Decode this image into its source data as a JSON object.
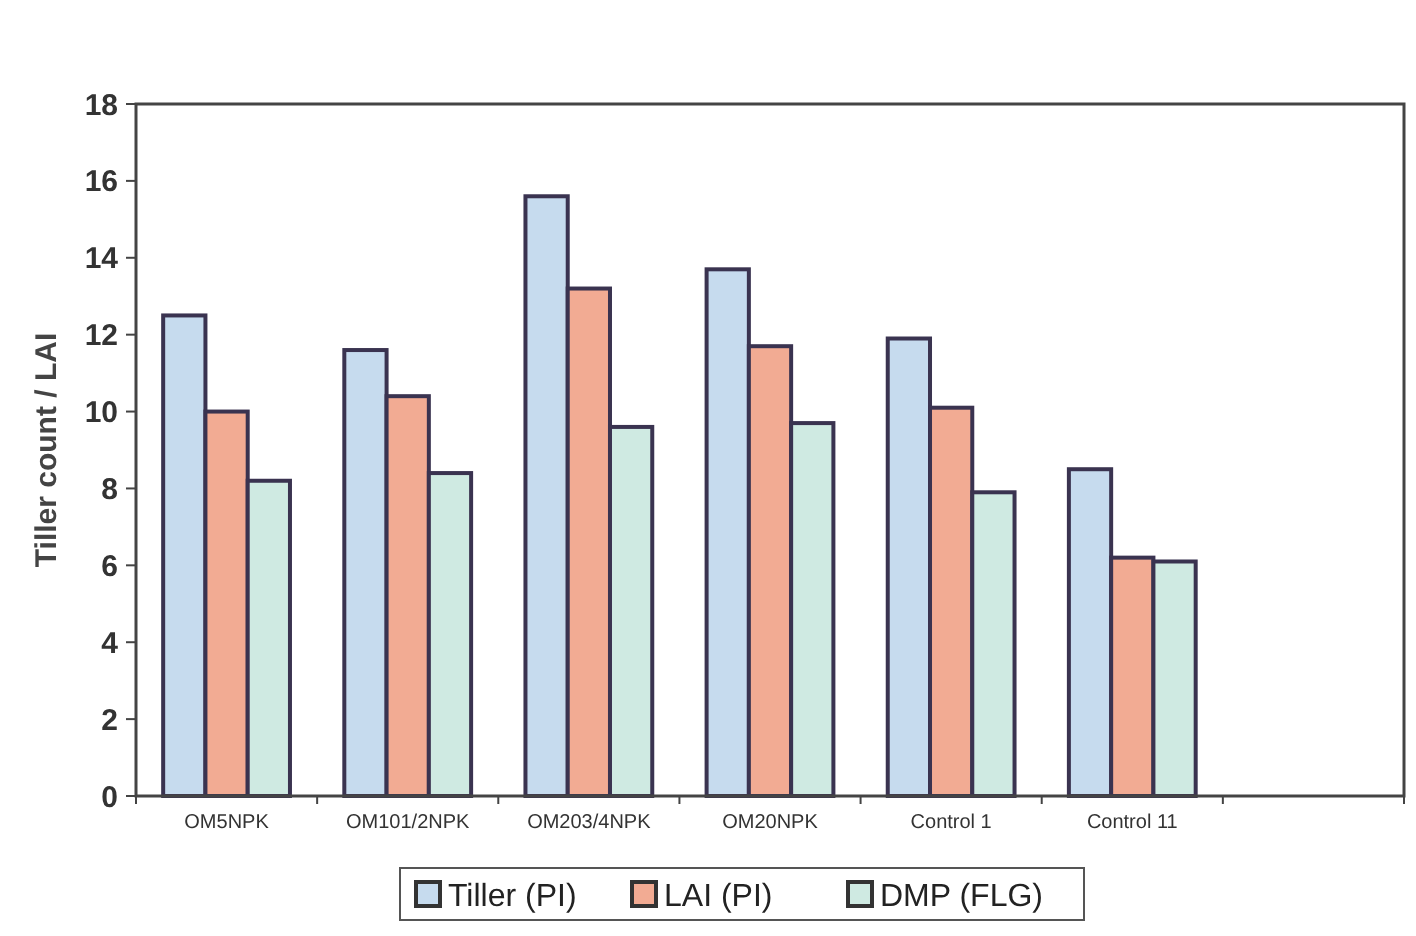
{
  "chart_data": {
    "type": "bar",
    "ylabel": "Tiller count / LAI",
    "categories": [
      "OM5NPK",
      "OM101/2NPK",
      "OM203/4NPK",
      "OM20NPK",
      "Control 1",
      "Control 11",
      null
    ],
    "series": [
      {
        "name": "Tiller (PI)",
        "color": "#c6dbee",
        "values": [
          12.5,
          11.6,
          15.6,
          13.7,
          11.9,
          8.5,
          null
        ]
      },
      {
        "name": "LAI (PI)",
        "color": "#f2ab93",
        "values": [
          10.0,
          10.4,
          13.2,
          11.7,
          10.1,
          6.2,
          null
        ]
      },
      {
        "name": "DMP (FLG)",
        "color": "#cfeae2",
        "values": [
          8.2,
          8.4,
          9.6,
          9.7,
          7.9,
          6.1,
          null
        ]
      }
    ],
    "ylim": [
      0,
      18
    ],
    "yticks": [
      0,
      2,
      4,
      6,
      8,
      10,
      12,
      14,
      16,
      18
    ],
    "grid": false,
    "legend": "bottom"
  }
}
